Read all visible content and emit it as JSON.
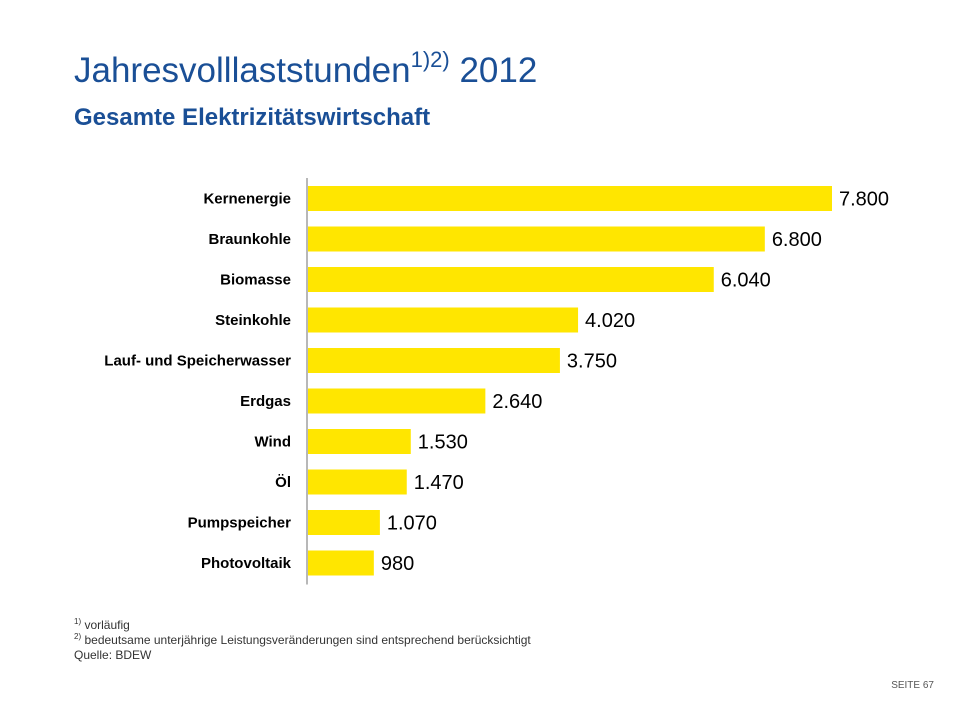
{
  "slide": {
    "title": "Jahresvolllaststunden",
    "title_superscript": "1)2)",
    "title_year": "2012",
    "subtitle": "Gesamte Elektrizitätswirtschaft",
    "footnotes": [
      {
        "marker": "1)",
        "text": "vorläufig"
      },
      {
        "marker": "2)",
        "text": "bedeutsame unterjährige Leistungsveränderungen sind entsprechend berücksichtigt"
      }
    ],
    "source": "Quelle: BDEW",
    "page_number": "SEITE 67"
  },
  "colors": {
    "title": "#1a4f96",
    "bar": "#ffe600",
    "axis": "#a0a0a0",
    "text": "#000000"
  },
  "chart_data": {
    "type": "bar",
    "orientation": "horizontal",
    "title": "",
    "xlabel": "",
    "ylabel": "",
    "categories": [
      "Kernenergie",
      "Braunkohle",
      "Biomasse",
      "Steinkohle",
      "Lauf- und Speicherwasser",
      "Erdgas",
      "Wind",
      "Öl",
      "Pumpspeicher",
      "Photovoltaik"
    ],
    "values": [
      7800,
      6800,
      6040,
      4020,
      3750,
      2640,
      1530,
      1470,
      1070,
      980
    ],
    "value_labels": [
      "7.800",
      "6.800",
      "6.040",
      "4.020",
      "3.750",
      "2.640",
      "1.530",
      "1.470",
      "1.070",
      "980"
    ],
    "xlim": [
      0,
      7800
    ],
    "grid": false,
    "legend": "none"
  }
}
